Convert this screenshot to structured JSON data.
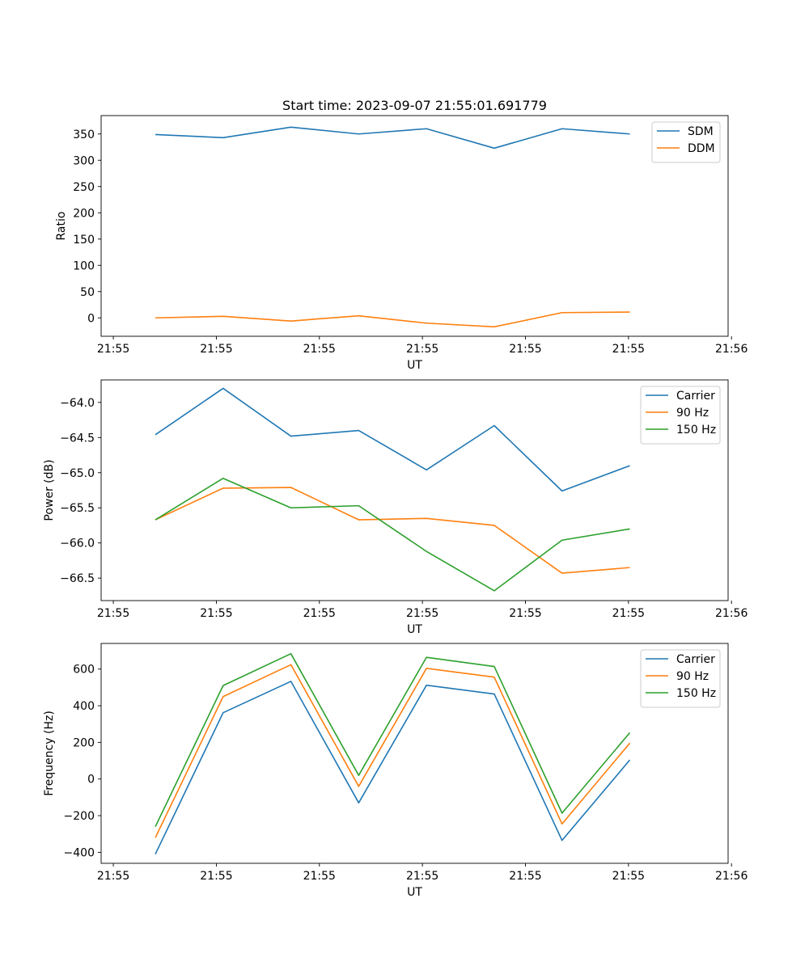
{
  "figure": {
    "title": "Start time: 2023-09-07 21:55:01.691779"
  },
  "chart_data": [
    {
      "type": "line",
      "title": "Start time: 2023-09-07 21:55:01.691779",
      "xlabel": "UT",
      "ylabel": "Ratio",
      "x": [
        1,
        2,
        3,
        4,
        5,
        6,
        7,
        8
      ],
      "xlim": [
        0.2,
        9.45
      ],
      "xticks": [
        0.38,
        1.9,
        3.42,
        4.94,
        6.46,
        7.98,
        9.5
      ],
      "xtick_labels": [
        "21:55",
        "21:55",
        "21:55",
        "21:55",
        "21:55",
        "21:55",
        "21:56"
      ],
      "ylim": [
        -35,
        385
      ],
      "yticks": [
        0,
        50,
        100,
        150,
        200,
        250,
        300,
        350
      ],
      "ytick_labels": [
        "0",
        "50",
        "100",
        "150",
        "200",
        "250",
        "300",
        "350"
      ],
      "legend_position": "top-right",
      "series": [
        {
          "name": "SDM",
          "color": "#1f77b4",
          "values": [
            349,
            343,
            363,
            350,
            360,
            323,
            360,
            350
          ]
        },
        {
          "name": "DDM",
          "color": "#ff7f0e",
          "values": [
            0,
            3,
            -6,
            4,
            -10,
            -17,
            10,
            11
          ]
        }
      ]
    },
    {
      "type": "line",
      "title": "",
      "xlabel": "UT",
      "ylabel": "Power (dB)",
      "x": [
        1,
        2,
        3,
        4,
        5,
        6,
        7,
        8
      ],
      "xlim": [
        0.2,
        9.45
      ],
      "xticks": [
        0.38,
        1.9,
        3.42,
        4.94,
        6.46,
        7.98,
        9.5
      ],
      "xtick_labels": [
        "21:55",
        "21:55",
        "21:55",
        "21:55",
        "21:55",
        "21:55",
        "21:56"
      ],
      "ylim": [
        -66.82,
        -63.68
      ],
      "yticks": [
        -64.0,
        -64.5,
        -65.0,
        -65.5,
        -66.0,
        -66.5
      ],
      "ytick_labels": [
        "−64.0",
        "−64.5",
        "−65.0",
        "−65.5",
        "−66.0",
        "−66.5"
      ],
      "legend_position": "top-right",
      "series": [
        {
          "name": "Carrier",
          "color": "#1f77b4",
          "values": [
            -64.46,
            -63.8,
            -64.48,
            -64.4,
            -64.96,
            -64.33,
            -65.26,
            -64.9
          ]
        },
        {
          "name": "90 Hz",
          "color": "#ff7f0e",
          "values": [
            -65.67,
            -65.22,
            -65.21,
            -65.67,
            -65.65,
            -65.75,
            -66.43,
            -66.35
          ]
        },
        {
          "name": "150 Hz",
          "color": "#2ca02c",
          "values": [
            -65.67,
            -65.08,
            -65.5,
            -65.47,
            -66.12,
            -66.68,
            -65.96,
            -65.8
          ]
        }
      ]
    },
    {
      "type": "line",
      "title": "",
      "xlabel": "UT",
      "ylabel": "Frequency (Hz)",
      "x": [
        1,
        2,
        3,
        4,
        5,
        6,
        7,
        8
      ],
      "xlim": [
        0.2,
        9.45
      ],
      "xticks": [
        0.38,
        1.9,
        3.42,
        4.94,
        6.46,
        7.98,
        9.5
      ],
      "xtick_labels": [
        "21:55",
        "21:55",
        "21:55",
        "21:55",
        "21:55",
        "21:55",
        "21:56"
      ],
      "ylim": [
        -460,
        740
      ],
      "yticks": [
        600,
        400,
        200,
        0,
        -200,
        -400
      ],
      "ytick_labels": [
        "600",
        "400",
        "200",
        "0",
        "−200",
        "−400"
      ],
      "legend_position": "top-right",
      "series": [
        {
          "name": "Carrier",
          "color": "#1f77b4",
          "values": [
            -410,
            362,
            533,
            -130,
            512,
            464,
            -335,
            104
          ]
        },
        {
          "name": "90 Hz",
          "color": "#ff7f0e",
          "values": [
            -320,
            450,
            624,
            -40,
            604,
            556,
            -245,
            196
          ]
        },
        {
          "name": "150 Hz",
          "color": "#2ca02c",
          "values": [
            -260,
            510,
            684,
            20,
            664,
            614,
            -186,
            253
          ]
        }
      ]
    }
  ]
}
